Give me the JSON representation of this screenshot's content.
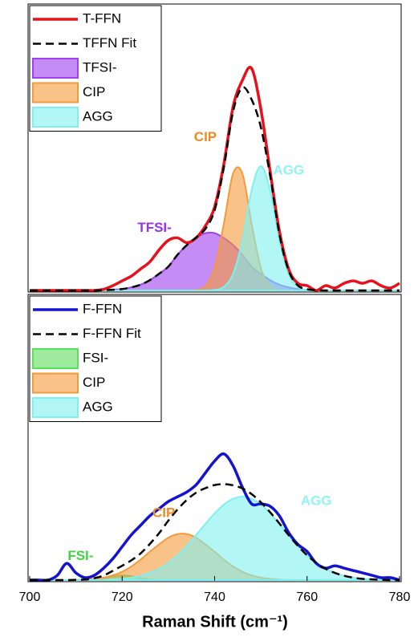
{
  "chart_data": [
    {
      "type": "line",
      "x": [
        700,
        702,
        704,
        706,
        708,
        710,
        712,
        714,
        716,
        718,
        720,
        722,
        724,
        726,
        728,
        730,
        732,
        734,
        736,
        738,
        740,
        742,
        744,
        746,
        748,
        750,
        752,
        754,
        756,
        758,
        760,
        762,
        764,
        766,
        768,
        770,
        772,
        774,
        776,
        778,
        780
      ],
      "xlim": [
        700,
        780
      ],
      "ylim": [
        0,
        1.2
      ],
      "legend": "upper left",
      "series": [
        {
          "name": "T-FFN",
          "style": "line",
          "color": "#e8101a",
          "values": [
            0,
            0,
            0,
            0,
            0,
            0,
            0,
            0,
            0.005,
            0.02,
            0.04,
            0.06,
            0.09,
            0.12,
            0.17,
            0.21,
            0.22,
            0.2,
            0.22,
            0.27,
            0.35,
            0.53,
            0.77,
            0.88,
            0.93,
            0.76,
            0.5,
            0.25,
            0.09,
            0.03,
            0.02,
            0,
            0.02,
            0.01,
            0.03,
            0.04,
            0.03,
            0.04,
            0.02,
            0.01,
            0.03
          ]
        },
        {
          "name": "TFFN Fit",
          "style": "dashed",
          "color": "#000000",
          "values": [
            0,
            0,
            0,
            0,
            0,
            0,
            0,
            0,
            0.001,
            0.003,
            0.006,
            0.013,
            0.024,
            0.043,
            0.07,
            0.1,
            0.15,
            0.19,
            0.222,
            0.258,
            0.336,
            0.515,
            0.75,
            0.85,
            0.8,
            0.684,
            0.481,
            0.236,
            0.083,
            0.021,
            0.005,
            0.001,
            0,
            0,
            0,
            0,
            0,
            0,
            0,
            0,
            0
          ]
        },
        {
          "name": "TFSI-",
          "style": "area",
          "color": "#a040f0",
          "values": [
            0,
            0,
            0,
            0,
            0,
            0,
            0,
            0,
            0.001,
            0.003,
            0.006,
            0.013,
            0.024,
            0.043,
            0.07,
            0.1,
            0.15,
            0.19,
            0.22,
            0.24,
            0.24,
            0.22,
            0.19,
            0.15,
            0.1,
            0.07,
            0.043,
            0.024,
            0.013,
            0.006,
            0.003,
            0.001,
            0,
            0,
            0,
            0,
            0,
            0,
            0,
            0,
            0
          ]
        },
        {
          "name": "CIP",
          "style": "area",
          "color": "#f59a3a",
          "values": [
            0,
            0,
            0,
            0,
            0,
            0,
            0,
            0,
            0,
            0,
            0,
            0,
            0,
            0,
            0,
            0,
            0,
            0,
            0.002,
            0.018,
            0.094,
            0.28,
            0.49,
            0.49,
            0.28,
            0.094,
            0.018,
            0.002,
            0,
            0,
            0,
            0,
            0,
            0,
            0,
            0,
            0,
            0,
            0,
            0,
            0
          ]
        },
        {
          "name": "AGG",
          "style": "area",
          "color": "#7ff0f0",
          "values": [
            0,
            0,
            0,
            0,
            0,
            0,
            0,
            0,
            0,
            0,
            0,
            0,
            0,
            0,
            0,
            0,
            0,
            0,
            0,
            0,
            0.002,
            0.015,
            0.07,
            0.21,
            0.42,
            0.52,
            0.42,
            0.21,
            0.07,
            0.015,
            0.002,
            0,
            0,
            0,
            0,
            0,
            0,
            0,
            0,
            0,
            0
          ]
        }
      ],
      "annotations": [
        {
          "text": "CIP",
          "color": "#f08a20"
        },
        {
          "text": "AGG",
          "color": "#8ff4f4"
        },
        {
          "text": "TFSI-",
          "color": "#9a30f0"
        }
      ]
    },
    {
      "type": "line",
      "x": [
        700,
        702,
        704,
        706,
        708,
        710,
        712,
        714,
        716,
        718,
        720,
        722,
        724,
        726,
        728,
        730,
        732,
        734,
        736,
        738,
        740,
        742,
        744,
        746,
        748,
        750,
        752,
        754,
        756,
        758,
        760,
        762,
        764,
        766,
        768,
        770,
        772,
        774,
        776,
        778,
        780
      ],
      "xlim": [
        700,
        780
      ],
      "ylim": [
        0,
        1.2
      ],
      "legend": "upper left",
      "xticks": [
        700,
        720,
        740,
        760,
        780
      ],
      "xlabel": "Raman Shift (cm⁻¹)",
      "series": [
        {
          "name": "F-FFN",
          "style": "line",
          "color": "#1414d0",
          "values": [
            0,
            0,
            0,
            0.02,
            0.07,
            0.03,
            0.01,
            0.02,
            0.05,
            0.09,
            0.14,
            0.19,
            0.23,
            0.27,
            0.3,
            0.33,
            0.35,
            0.37,
            0.4,
            0.45,
            0.5,
            0.53,
            0.48,
            0.39,
            0.32,
            0.32,
            0.31,
            0.27,
            0.2,
            0.15,
            0.12,
            0.07,
            0.05,
            0.06,
            0.05,
            0.04,
            0.03,
            0.02,
            0.01,
            0.01,
            0
          ]
        },
        {
          "name": "F-FFN Fit",
          "style": "dashed",
          "color": "#000000",
          "values": [
            0,
            0,
            0,
            0,
            0,
            0.001,
            0.002,
            0.008,
            0.019,
            0.039,
            0.06,
            0.083,
            0.112,
            0.152,
            0.197,
            0.25,
            0.297,
            0.337,
            0.367,
            0.386,
            0.399,
            0.403,
            0.398,
            0.385,
            0.361,
            0.327,
            0.285,
            0.238,
            0.189,
            0.144,
            0.104,
            0.072,
            0.047,
            0.03,
            0.018,
            0.01,
            0.005,
            0.003,
            0.001,
            0,
            0
          ]
        },
        {
          "name": "FSI-",
          "style": "area",
          "color": "#5ce05c",
          "values": [
            0,
            0,
            0,
            0,
            0,
            0,
            0,
            0.003,
            0.008,
            0.016,
            0.02,
            0.016,
            0.008,
            0.003,
            0,
            0,
            0,
            0,
            0,
            0,
            0,
            0,
            0,
            0,
            0,
            0,
            0,
            0,
            0,
            0,
            0,
            0,
            0,
            0,
            0,
            0,
            0,
            0,
            0,
            0,
            0
          ]
        },
        {
          "name": "CIP",
          "style": "area",
          "color": "#f59a3a",
          "values": [
            0,
            0,
            0,
            0,
            0,
            0.001,
            0.002,
            0.005,
            0.01,
            0.02,
            0.035,
            0.057,
            0.086,
            0.119,
            0.15,
            0.178,
            0.193,
            0.193,
            0.178,
            0.15,
            0.119,
            0.086,
            0.057,
            0.035,
            0.02,
            0.01,
            0.005,
            0.002,
            0,
            0,
            0,
            0,
            0,
            0,
            0,
            0,
            0,
            0,
            0,
            0,
            0
          ]
        },
        {
          "name": "AGG",
          "style": "area",
          "color": "#7ff0f0",
          "values": [
            0,
            0,
            0,
            0,
            0,
            0,
            0,
            0,
            0.001,
            0.003,
            0.005,
            0.01,
            0.018,
            0.03,
            0.047,
            0.072,
            0.104,
            0.144,
            0.189,
            0.236,
            0.28,
            0.317,
            0.341,
            0.35,
            0.341,
            0.317,
            0.28,
            0.236,
            0.189,
            0.144,
            0.104,
            0.072,
            0.047,
            0.03,
            0.018,
            0.01,
            0.005,
            0.003,
            0.001,
            0,
            0
          ]
        }
      ],
      "annotations": [
        {
          "text": "CIP",
          "color": "#f08a20"
        },
        {
          "text": "AGG",
          "color": "#8ff4f4"
        },
        {
          "text": "FSI-",
          "color": "#3ed63e"
        }
      ]
    }
  ]
}
